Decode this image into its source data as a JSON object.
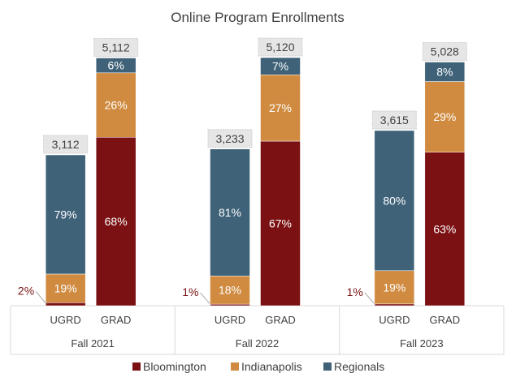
{
  "chart_data": {
    "type": "bar",
    "stacked": true,
    "title": "Online Program Enrollments",
    "groups": [
      "Fall 2021",
      "Fall 2022",
      "Fall 2023"
    ],
    "categories": [
      "UGRD",
      "GRAD"
    ],
    "bars": [
      {
        "group": "Fall 2021",
        "category": "UGRD",
        "total": 3112,
        "total_label": "3,112",
        "segments": [
          {
            "series": "Bloomington",
            "percent": 2,
            "label": "2%"
          },
          {
            "series": "Indianapolis",
            "percent": 19,
            "label": "19%"
          },
          {
            "series": "Regionals",
            "percent": 79,
            "label": "79%"
          }
        ]
      },
      {
        "group": "Fall 2021",
        "category": "GRAD",
        "total": 5112,
        "total_label": "5,112",
        "segments": [
          {
            "series": "Bloomington",
            "percent": 68,
            "label": "68%"
          },
          {
            "series": "Indianapolis",
            "percent": 26,
            "label": "26%"
          },
          {
            "series": "Regionals",
            "percent": 6,
            "label": "6%"
          }
        ]
      },
      {
        "group": "Fall 2022",
        "category": "UGRD",
        "total": 3233,
        "total_label": "3,233",
        "segments": [
          {
            "series": "Bloomington",
            "percent": 1,
            "label": "1%"
          },
          {
            "series": "Indianapolis",
            "percent": 18,
            "label": "18%"
          },
          {
            "series": "Regionals",
            "percent": 81,
            "label": "81%"
          }
        ]
      },
      {
        "group": "Fall 2022",
        "category": "GRAD",
        "total": 5120,
        "total_label": "5,120",
        "segments": [
          {
            "series": "Bloomington",
            "percent": 67,
            "label": "67%"
          },
          {
            "series": "Indianapolis",
            "percent": 27,
            "label": "27%"
          },
          {
            "series": "Regionals",
            "percent": 7,
            "label": "7%"
          }
        ]
      },
      {
        "group": "Fall 2023",
        "category": "UGRD",
        "total": 3615,
        "total_label": "3,615",
        "segments": [
          {
            "series": "Bloomington",
            "percent": 1,
            "label": "1%"
          },
          {
            "series": "Indianapolis",
            "percent": 19,
            "label": "19%"
          },
          {
            "series": "Regionals",
            "percent": 80,
            "label": "80%"
          }
        ]
      },
      {
        "group": "Fall 2023",
        "category": "GRAD",
        "total": 5028,
        "total_label": "5,028",
        "segments": [
          {
            "series": "Bloomington",
            "percent": 63,
            "label": "63%"
          },
          {
            "series": "Indianapolis",
            "percent": 29,
            "label": "29%"
          },
          {
            "series": "Regionals",
            "percent": 8,
            "label": "8%"
          }
        ]
      }
    ],
    "series": [
      {
        "name": "Bloomington",
        "color": "#7b1113"
      },
      {
        "name": "Indianapolis",
        "color": "#d08b41"
      },
      {
        "name": "Regionals",
        "color": "#3f6279"
      }
    ],
    "legend_position": "bottom",
    "grid": false,
    "ylim": [
      0,
      5500
    ]
  }
}
